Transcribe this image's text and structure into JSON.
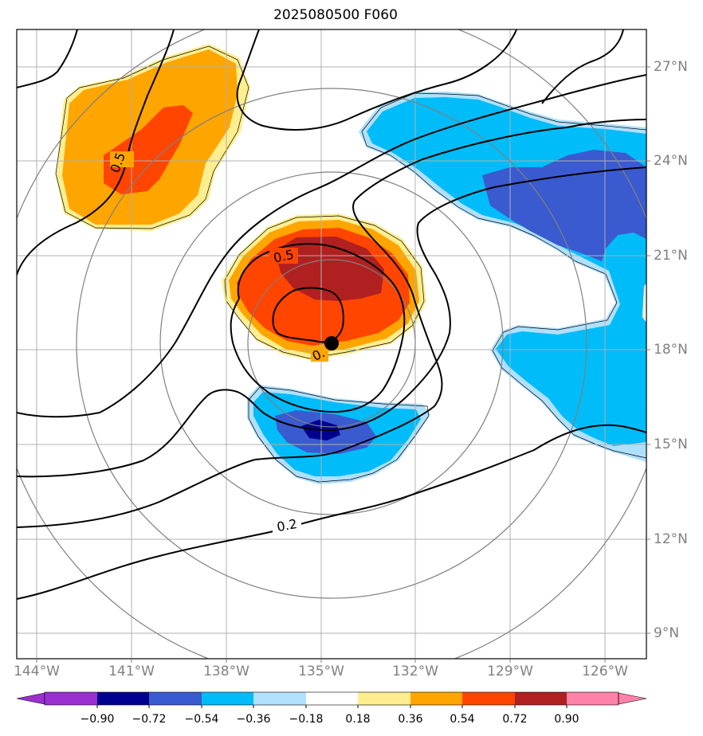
{
  "title": "2025080500 F060",
  "map": {
    "lon_labels": [
      "144°W",
      "141°W",
      "138°W",
      "135°W",
      "132°W",
      "129°W",
      "126°W"
    ],
    "lat_labels": [
      "27°N",
      "24°N",
      "21°N",
      "18°N",
      "15°N",
      "12°N",
      "9°N"
    ],
    "contour_labels": [
      "0.5",
      "0.5",
      "0.",
      "0.2"
    ],
    "storm_center": {
      "lon": -134.7,
      "lat": 18.2
    }
  },
  "colorbar": {
    "colors": [
      "#9a30d0",
      "#000090",
      "#3a5ad0",
      "#00bcf8",
      "#b0e0ff",
      "#ffffff",
      "#ffee90",
      "#ffa500",
      "#ff4500",
      "#b02020",
      "#ff82aa"
    ],
    "tick_labels": [
      "−0.90",
      "−0.72",
      "−0.54",
      "−0.36",
      "−0.18",
      "0.18",
      "0.36",
      "0.54",
      "0.72",
      "0.90"
    ]
  }
}
